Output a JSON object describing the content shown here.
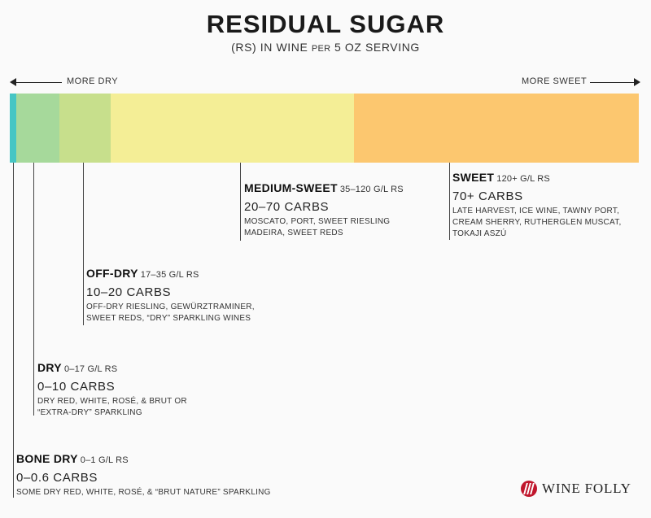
{
  "title": "RESIDUAL SUGAR",
  "subtitle": {
    "prefix": "(RS) IN WINE",
    "per": "PER",
    "suffix": "5 OZ SERVING"
  },
  "direction": {
    "left_label": "MORE DRY",
    "right_label": "MORE SWEET"
  },
  "scale_colors": [
    "#46c6c4",
    "#a6d99b",
    "#c7df8c",
    "#f4ee96",
    "#fcc76f"
  ],
  "categories": [
    {
      "name": "BONE DRY",
      "rs": "0–1 G/L RS",
      "carbs": "0–0.6 CARBS",
      "examples": [
        "SOME DRY RED, WHITE, ROSÉ, & “BRUT NATURE” SPARKLING"
      ]
    },
    {
      "name": "DRY",
      "rs": "0–17 G/L RS",
      "carbs": "0–10 CARBS",
      "examples": [
        "DRY RED, WHITE, ROSÉ, & BRUT OR",
        "“EXTRA-DRY” SPARKLING"
      ]
    },
    {
      "name": "OFF-DRY",
      "rs": "17–35 G/L RS",
      "carbs": "10–20 CARBS",
      "examples": [
        "OFF-DRY RIESLING, GEWÜRZTRAMINER,",
        "SWEET REDS, “DRY” SPARKLING WINES"
      ]
    },
    {
      "name": "MEDIUM-SWEET",
      "rs": "35–120 G/L RS",
      "carbs": "20–70 CARBS",
      "examples": [
        "MOSCATO, PORT, SWEET RIESLING",
        "MADEIRA, SWEET REDS"
      ]
    },
    {
      "name": "SWEET",
      "rs": "120+ G/L RS",
      "carbs": "70+ CARBS",
      "examples": [
        "LATE HARVEST, ICE WINE, TAWNY PORT,",
        "CREAM SHERRY, RUTHERGLEN MUSCAT,",
        "TOKAJI ASZÚ"
      ]
    }
  ],
  "logo": {
    "icon": "wine-folly-logo-icon",
    "text": "WINE FOLLY",
    "color": "#c0162c"
  }
}
